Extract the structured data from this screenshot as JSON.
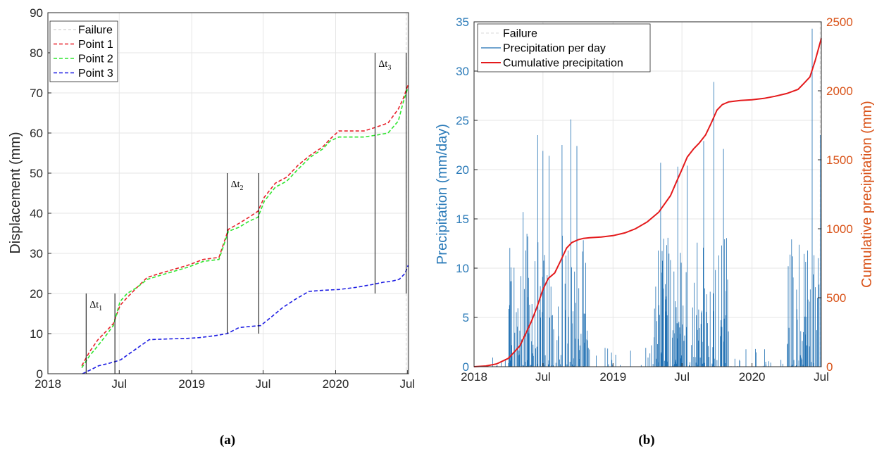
{
  "chart_data": [
    {
      "type": "line",
      "panel": "(a)",
      "ylabel": "Displacement (mm)",
      "ylim": [
        0,
        90
      ],
      "yticks": [
        0,
        10,
        20,
        30,
        40,
        50,
        60,
        70,
        80,
        90
      ],
      "xlim": [
        "2018-01-01",
        "2020-07-04"
      ],
      "xticks": [
        {
          "date": "2018-01-01",
          "label": "2018"
        },
        {
          "date": "2018-07-01",
          "label": "Jul"
        },
        {
          "date": "2019-01-01",
          "label": "2019"
        },
        {
          "date": "2019-07-01",
          "label": "Jul"
        },
        {
          "date": "2020-01-01",
          "label": "2020"
        },
        {
          "date": "2020-07-01",
          "label": "Jul"
        }
      ],
      "grid": true,
      "legend_position": "top-left",
      "failure": {
        "name": "Failure",
        "date": "2020-06-28",
        "color": "#d9d9d9"
      },
      "series": [
        {
          "name": "Point 1",
          "color": "#e8212a",
          "style": "dashed",
          "x": [
            "2018-03-28",
            "2018-04-17",
            "2018-05-08",
            "2018-05-28",
            "2018-06-16",
            "2018-07-03",
            "2018-07-21",
            "2018-08-15",
            "2018-09-10",
            "2018-10-12",
            "2018-11-16",
            "2018-12-21",
            "2019-01-30",
            "2019-03-11",
            "2019-04-04",
            "2019-05-01",
            "2019-05-26",
            "2019-06-18",
            "2019-07-04",
            "2019-08-01",
            "2019-08-30",
            "2019-09-28",
            "2019-10-29",
            "2019-11-29",
            "2019-12-18",
            "2020-01-09",
            "2020-02-10",
            "2020-03-13",
            "2020-04-14",
            "2020-05-13",
            "2020-06-08",
            "2020-06-20",
            "2020-07-03"
          ],
          "y": [
            2,
            5.5,
            8.5,
            10.5,
            12.5,
            17,
            19,
            21.5,
            24,
            25,
            26,
            27,
            28.5,
            29,
            36,
            37.5,
            39,
            40.5,
            44,
            47.5,
            49,
            52,
            54.5,
            56.5,
            58.5,
            60.5,
            60.5,
            60.5,
            61.5,
            62.5,
            66,
            68.5,
            72
          ]
        },
        {
          "name": "Point 2",
          "color": "#2fe52f",
          "style": "dashed",
          "x": [
            "2018-03-28",
            "2018-04-17",
            "2018-05-08",
            "2018-05-28",
            "2018-06-16",
            "2018-07-03",
            "2018-07-21",
            "2018-08-15",
            "2018-09-10",
            "2018-10-12",
            "2018-11-16",
            "2018-12-21",
            "2019-01-30",
            "2019-03-11",
            "2019-04-04",
            "2019-05-01",
            "2019-05-26",
            "2019-06-18",
            "2019-07-04",
            "2019-08-01",
            "2019-08-30",
            "2019-09-28",
            "2019-10-29",
            "2019-11-29",
            "2019-12-18",
            "2020-01-09",
            "2020-02-10",
            "2020-03-13",
            "2020-04-14",
            "2020-05-13",
            "2020-06-08",
            "2020-06-20",
            "2020-07-03"
          ],
          "y": [
            1.5,
            4.5,
            7,
            9.5,
            12,
            18,
            20,
            21.5,
            23.5,
            24.5,
            25.5,
            26.5,
            28,
            28.5,
            35.5,
            36.5,
            38,
            39,
            43,
            46.5,
            48,
            51,
            54,
            56,
            58,
            59,
            59,
            59,
            59.5,
            60,
            63,
            67.5,
            71.5
          ]
        },
        {
          "name": "Point 3",
          "color": "#1d1de3",
          "style": "dashed",
          "x": [
            "2018-03-30",
            "2018-04-20",
            "2018-05-10",
            "2018-06-01",
            "2018-06-20",
            "2018-07-05",
            "2018-08-10",
            "2018-09-15",
            "2018-11-10",
            "2018-12-20",
            "2019-01-20",
            "2019-03-01",
            "2019-04-01",
            "2019-05-01",
            "2019-06-01",
            "2019-06-25",
            "2019-07-20",
            "2019-08-20",
            "2019-09-20",
            "2019-10-25",
            "2019-12-01",
            "2020-01-10",
            "2020-02-20",
            "2020-04-01",
            "2020-05-01",
            "2020-05-20",
            "2020-06-10",
            "2020-06-25",
            "2020-07-03"
          ],
          "y": [
            0,
            1,
            2,
            2.5,
            3,
            3.5,
            6,
            8.5,
            8.7,
            8.8,
            9,
            9.5,
            10,
            11.5,
            11.8,
            12,
            14,
            16.5,
            18.5,
            20.5,
            20.8,
            21,
            21.5,
            22.2,
            22.8,
            23,
            23.5,
            25,
            27
          ]
        }
      ],
      "annotations": [
        {
          "label": "Δt",
          "sub": "1",
          "start": "2018-04-08",
          "end": "2018-06-20",
          "y_bottom": 0,
          "y_top": 20
        },
        {
          "label": "Δt",
          "sub": "2",
          "start": "2019-04-01",
          "end": "2019-06-20",
          "y_bottom": 10,
          "y_top": 50
        },
        {
          "label": "Δt",
          "sub": "3",
          "start": "2020-04-10",
          "end": "2020-06-28",
          "y_bottom": 20,
          "y_top": 80
        }
      ],
      "caption": "(a)"
    },
    {
      "type": "line",
      "panel": "(b)",
      "ylabel": "Precipitation (mm/day)",
      "ylabel_right": "Cumulative precipitation (mm)",
      "ylim": [
        0,
        35
      ],
      "ylim_right": [
        0,
        2500
      ],
      "yticks": [
        0,
        5,
        10,
        15,
        20,
        25,
        30,
        35
      ],
      "yticks_right": [
        0,
        500,
        1000,
        1500,
        2000,
        2500
      ],
      "xlim": [
        "2018-01-01",
        "2020-07-01"
      ],
      "xticks": [
        {
          "date": "2018-01-01",
          "label": "2018"
        },
        {
          "date": "2018-07-01",
          "label": "Jul"
        },
        {
          "date": "2019-01-01",
          "label": "2019"
        },
        {
          "date": "2019-07-01",
          "label": "Jul"
        },
        {
          "date": "2020-01-01",
          "label": "2020"
        },
        {
          "date": "2020-07-01",
          "label": "Jul"
        }
      ],
      "grid": true,
      "legend_position": "top-left",
      "failure": {
        "name": "Failure",
        "date": "2020-06-28",
        "color": "#d9d9d9"
      },
      "left_axis_color": "#2a7ab8",
      "right_axis_color": "#d95319",
      "series": [
        {
          "name": "Precipitation per day",
          "color": "#1f6fb2",
          "style": "solid",
          "axis": "left",
          "description": "daily precipitation spikes",
          "peaks": [
            {
              "date": "2018-05-10",
              "value": 15.7
            },
            {
              "date": "2018-06-17",
              "value": 23.5
            },
            {
              "date": "2018-07-01",
              "value": 21.9
            },
            {
              "date": "2018-07-17",
              "value": 21.4
            },
            {
              "date": "2018-08-20",
              "value": 22.5
            },
            {
              "date": "2018-09-12",
              "value": 25.1
            },
            {
              "date": "2018-09-28",
              "value": 22.4
            },
            {
              "date": "2019-05-06",
              "value": 20.7
            },
            {
              "date": "2019-06-20",
              "value": 20.3
            },
            {
              "date": "2019-07-15",
              "value": 20.4
            },
            {
              "date": "2019-08-27",
              "value": 22.9
            },
            {
              "date": "2019-09-23",
              "value": 28.9
            },
            {
              "date": "2019-10-18",
              "value": 22.1
            },
            {
              "date": "2020-06-07",
              "value": 34.3
            },
            {
              "date": "2020-06-28",
              "value": 23.5
            }
          ]
        },
        {
          "name": "Cumulative precipitation",
          "color": "#e41a1c",
          "style": "solid",
          "axis": "right",
          "x": [
            "2018-01-01",
            "2018-02-01",
            "2018-03-01",
            "2018-04-01",
            "2018-05-01",
            "2018-05-15",
            "2018-06-01",
            "2018-06-15",
            "2018-07-01",
            "2018-07-15",
            "2018-08-01",
            "2018-08-15",
            "2018-09-01",
            "2018-09-15",
            "2018-10-01",
            "2018-10-15",
            "2018-11-01",
            "2018-12-01",
            "2019-01-01",
            "2019-02-01",
            "2019-03-01",
            "2019-04-01",
            "2019-05-01",
            "2019-06-01",
            "2019-06-15",
            "2019-07-01",
            "2019-07-15",
            "2019-08-01",
            "2019-08-15",
            "2019-09-01",
            "2019-09-15",
            "2019-10-01",
            "2019-10-15",
            "2019-11-01",
            "2019-12-01",
            "2020-01-01",
            "2020-02-01",
            "2020-03-01",
            "2020-04-01",
            "2020-05-01",
            "2020-05-15",
            "2020-06-01",
            "2020-06-15",
            "2020-07-01"
          ],
          "y": [
            0,
            5,
            20,
            60,
            150,
            230,
            330,
            430,
            560,
            640,
            680,
            760,
            860,
            900,
            920,
            930,
            935,
            940,
            950,
            970,
            1000,
            1050,
            1120,
            1240,
            1330,
            1430,
            1520,
            1580,
            1620,
            1680,
            1760,
            1860,
            1900,
            1920,
            1930,
            1935,
            1945,
            1960,
            1980,
            2010,
            2050,
            2100,
            2220,
            2380
          ]
        }
      ],
      "caption": "(b)"
    }
  ]
}
